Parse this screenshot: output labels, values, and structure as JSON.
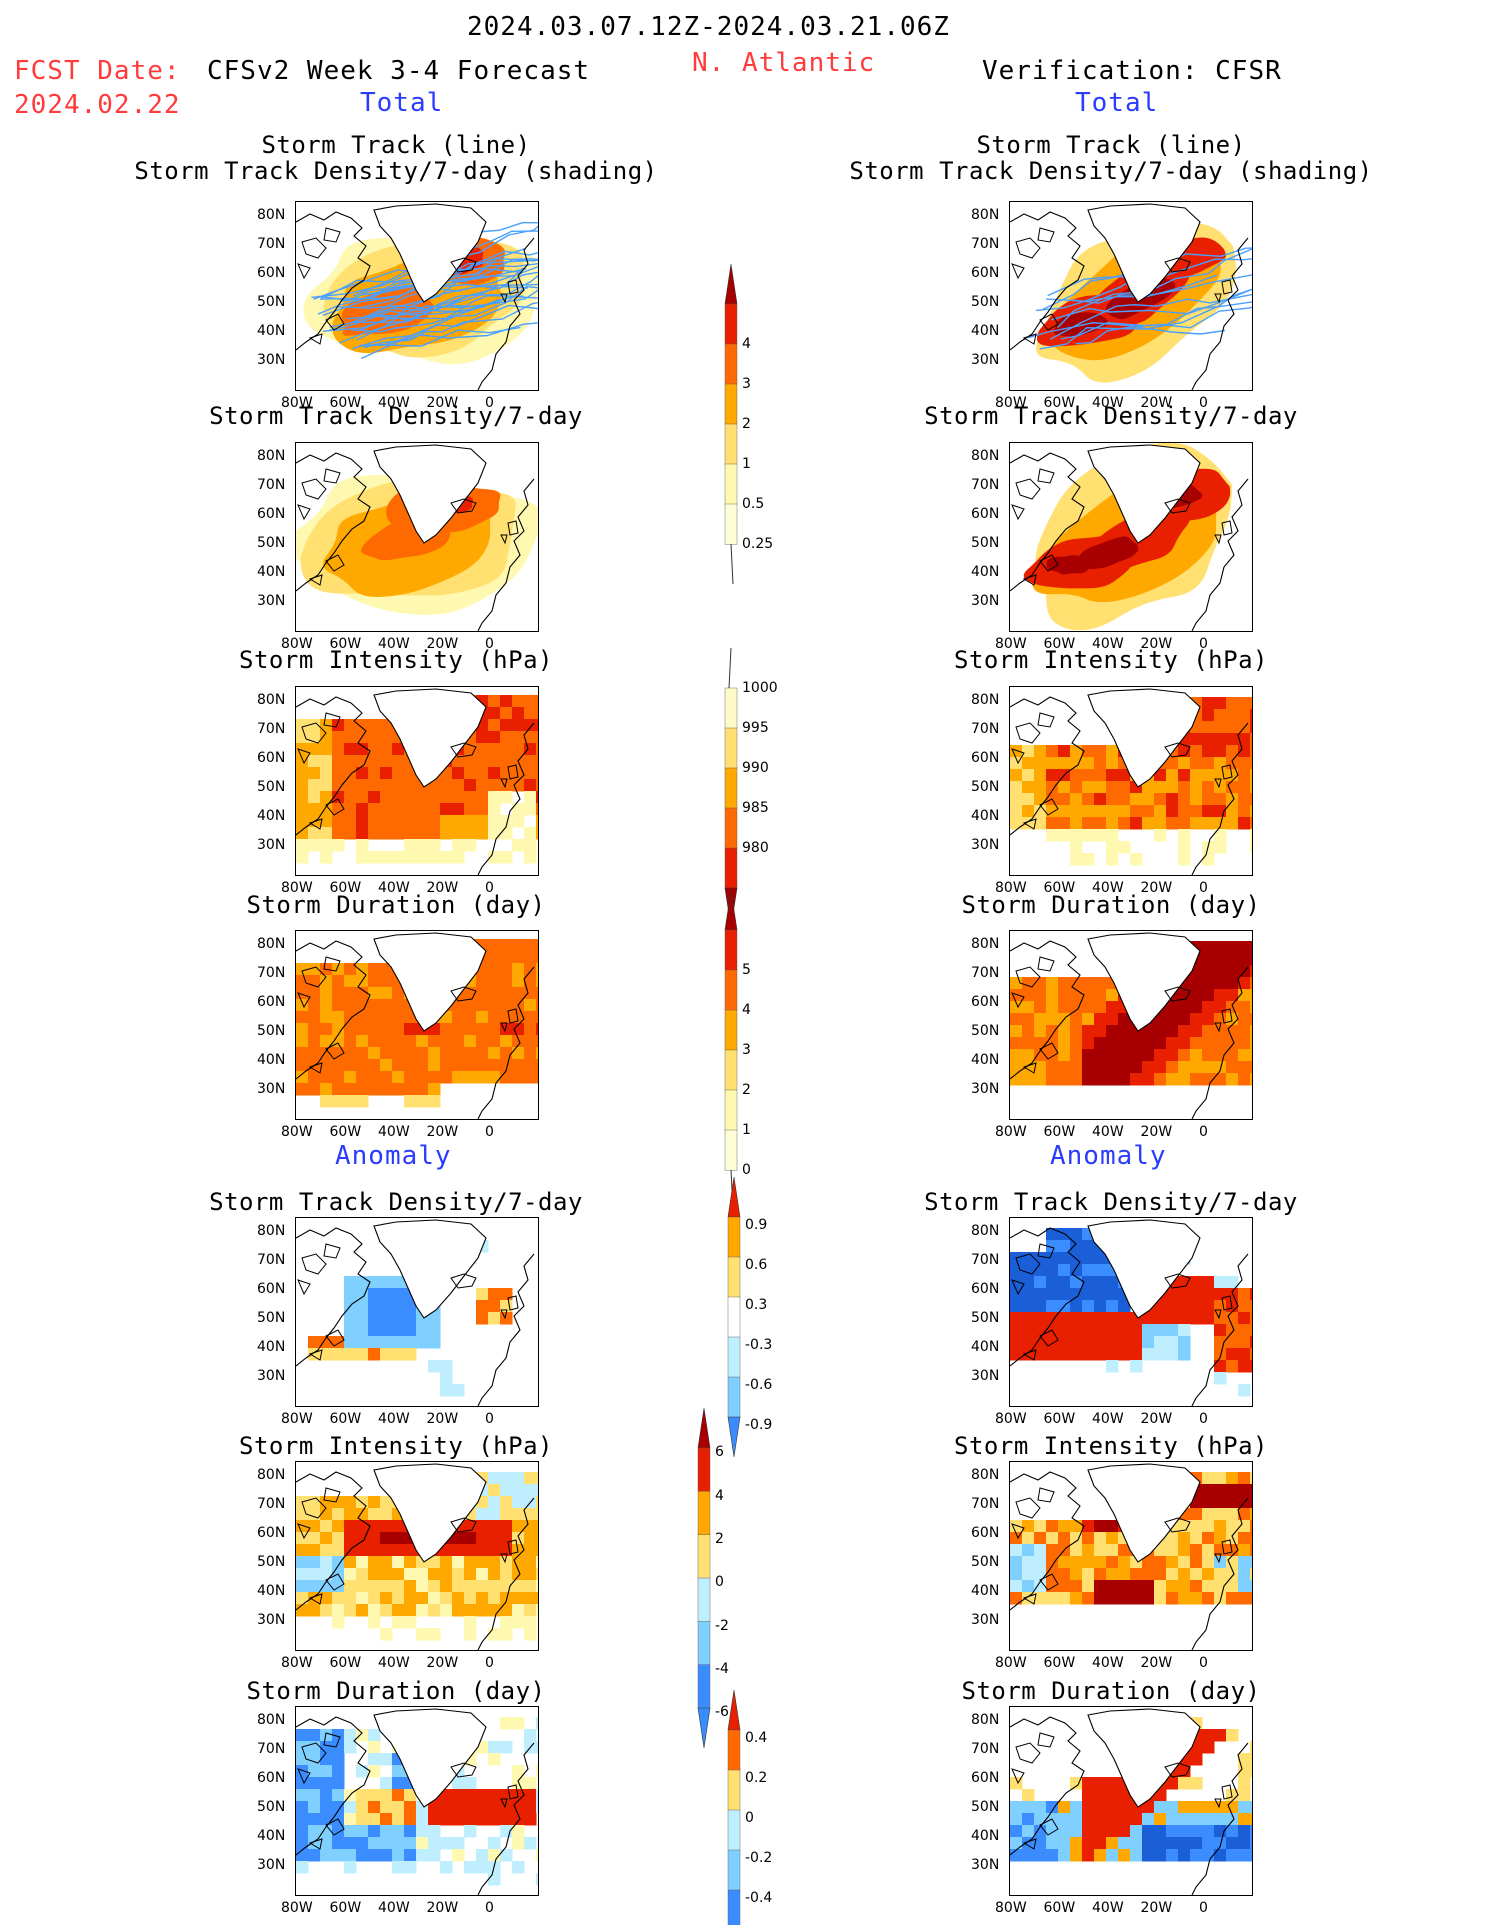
{
  "header": {
    "period": "2024.03.07.12Z-2024.03.21.06Z",
    "fcst_label": "FCST Date:",
    "fcst_date": "2024.02.22",
    "model_title": "CFSv2 Week 3-4 Forecast",
    "region": "N. Atlantic",
    "verification": "Verification: CFSR",
    "total_left": "Total",
    "total_right": "Total",
    "anomaly_left": "Anomaly",
    "anomaly_right": "Anomaly"
  },
  "panel_titles": {
    "track_line": "Storm Track (line)",
    "track_shading": "Storm Track Density/7-day (shading)",
    "density": "Storm Track Density/7-day",
    "intensity": "Storm Intensity (hPa)",
    "duration": "Storm Duration (day)"
  },
  "axes": {
    "lon_ticks": [
      "80W",
      "60W",
      "40W",
      "20W",
      "0"
    ],
    "lat_ticks": [
      "80N",
      "70N",
      "60N",
      "50N",
      "40N",
      "30N"
    ]
  },
  "colorbars": {
    "density_total": [
      "4",
      "3",
      "2",
      "1",
      "0.5",
      "0.25"
    ],
    "intensity_total": [
      "1000",
      "995",
      "990",
      "985",
      "980"
    ],
    "duration_total": [
      "5",
      "4",
      "3",
      "2",
      "1",
      "0"
    ],
    "density_anomaly": [
      "0.9",
      "0.6",
      "0.3",
      "-0.3",
      "-0.6",
      "-0.9"
    ],
    "intensity_anomaly": [
      "6",
      "4",
      "2",
      "0",
      "-2",
      "-4",
      "-6"
    ],
    "duration_anomaly": [
      "0.4",
      "0.2",
      "0",
      "-0.2",
      "-0.4"
    ]
  },
  "colors": {
    "warm": [
      "#fff8b0",
      "#ffe070",
      "#ffa800",
      "#ff6a00",
      "#e82000",
      "#a80000"
    ],
    "cold": [
      "#bfefff",
      "#7fcfff",
      "#3a8cff",
      "#1a5fd8"
    ],
    "track_line": "#4aa0ff",
    "header_red": "#ff3b3b",
    "header_blue": "#2a3cff"
  }
}
